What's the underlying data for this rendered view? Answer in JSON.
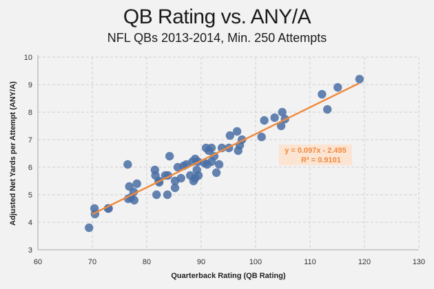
{
  "chart_data": {
    "type": "scatter",
    "title": "QB Rating vs. ANY/A",
    "subtitle": "NFL QBs 2013-2014,  Min. 250 Attempts",
    "xlabel": "Quarterback Rating (QB Rating)",
    "ylabel": "Adjusted Net Yards per Attempt (ANY/A)",
    "xlim": [
      60,
      130
    ],
    "ylim": [
      3,
      10
    ],
    "x_ticks": [
      60,
      70,
      80,
      90,
      100,
      110,
      120,
      130
    ],
    "y_ticks": [
      3,
      4,
      5,
      6,
      7,
      8,
      9,
      10
    ],
    "grid": true,
    "legend": "none",
    "point_color": "#4a6fa5",
    "trendline": {
      "slope": 0.097,
      "intercept": -2.495,
      "x_range": [
        70,
        119
      ],
      "color": "#f08a3c",
      "equation_label": "y = 0.097x - 2.495",
      "r2_label": "R² = 0.9101"
    },
    "points": [
      [
        69.4,
        3.8
      ],
      [
        70.4,
        4.5
      ],
      [
        70.5,
        4.3
      ],
      [
        72.9,
        4.5
      ],
      [
        73.0,
        4.5
      ],
      [
        76.5,
        6.1
      ],
      [
        76.8,
        5.3
      ],
      [
        76.6,
        4.85
      ],
      [
        77.1,
        4.9
      ],
      [
        77.6,
        5.1
      ],
      [
        77.7,
        4.8
      ],
      [
        78.2,
        5.4
      ],
      [
        81.5,
        5.9
      ],
      [
        81.6,
        5.7
      ],
      [
        81.8,
        5.0
      ],
      [
        82.2,
        5.5
      ],
      [
        82.3,
        5.45
      ],
      [
        83.4,
        5.7
      ],
      [
        83.8,
        5.0
      ],
      [
        84.2,
        6.4
      ],
      [
        83.9,
        5.7
      ],
      [
        85.2,
        5.5
      ],
      [
        85.2,
        5.25
      ],
      [
        85.7,
        6.0
      ],
      [
        86.3,
        5.6
      ],
      [
        86.8,
        6.05
      ],
      [
        87.3,
        6.1
      ],
      [
        88.0,
        5.7
      ],
      [
        88.4,
        6.2
      ],
      [
        88.6,
        5.5
      ],
      [
        88.9,
        6.3
      ],
      [
        88.9,
        5.6
      ],
      [
        89.2,
        5.9
      ],
      [
        89.4,
        6.2
      ],
      [
        89.5,
        5.7
      ],
      [
        90.6,
        6.15
      ],
      [
        90.9,
        6.7
      ],
      [
        91.1,
        6.1
      ],
      [
        91.4,
        6.6
      ],
      [
        91.9,
        6.7
      ],
      [
        91.9,
        6.2
      ],
      [
        92.4,
        6.4
      ],
      [
        92.8,
        5.8
      ],
      [
        93.3,
        6.1
      ],
      [
        93.8,
        6.7
      ],
      [
        95.1,
        6.7
      ],
      [
        95.3,
        7.15
      ],
      [
        96.6,
        7.3
      ],
      [
        96.8,
        6.6
      ],
      [
        97.1,
        6.8
      ],
      [
        97.5,
        7.0
      ],
      [
        101.1,
        7.1
      ],
      [
        101.6,
        7.7
      ],
      [
        103.5,
        7.8
      ],
      [
        104.7,
        7.5
      ],
      [
        104.9,
        8.0
      ],
      [
        105.4,
        7.75
      ],
      [
        112.2,
        8.65
      ],
      [
        113.2,
        8.1
      ],
      [
        115.1,
        8.9
      ],
      [
        119.1,
        9.2
      ]
    ]
  }
}
